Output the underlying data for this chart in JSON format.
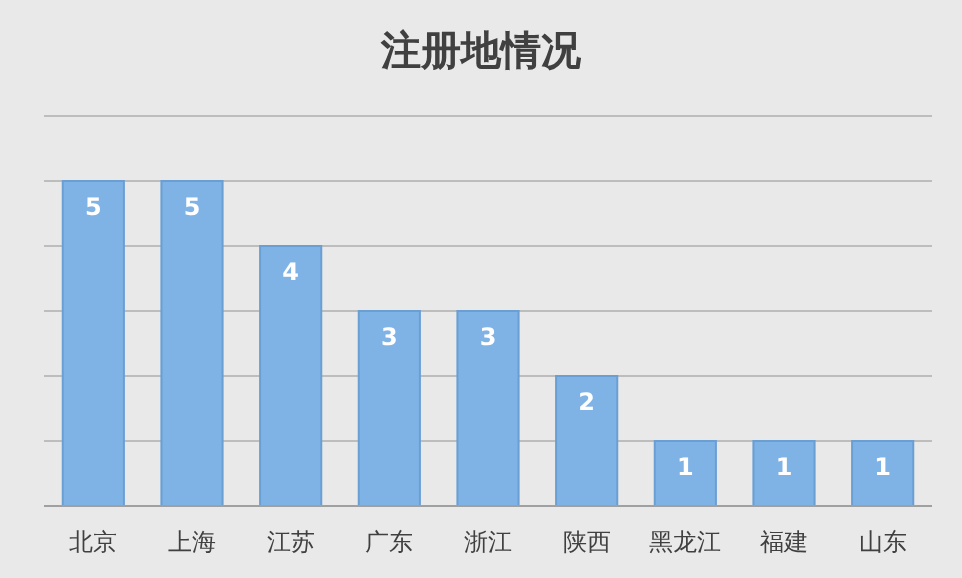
{
  "chart_data": {
    "type": "bar",
    "title": "注册地情况",
    "categories": [
      "北京",
      "上海",
      "江苏",
      "广东",
      "浙江",
      "陕西",
      "黑龙江",
      "福建",
      "山东"
    ],
    "values": [
      5,
      5,
      4,
      3,
      3,
      2,
      1,
      1,
      1
    ],
    "color": "#7fb2e5",
    "ylim": [
      0,
      6
    ],
    "yticks": [
      {
        "value": 0,
        "label": null
      },
      {
        "value": 1,
        "label": null
      },
      {
        "value": 2,
        "label": null
      },
      {
        "value": 3,
        "label": null
      },
      {
        "value": 4,
        "label": null
      },
      {
        "value": 5,
        "label": null
      },
      {
        "value": 6,
        "label": null
      }
    ],
    "grid": "y",
    "tick_labels": "x",
    "data_labels": true
  }
}
